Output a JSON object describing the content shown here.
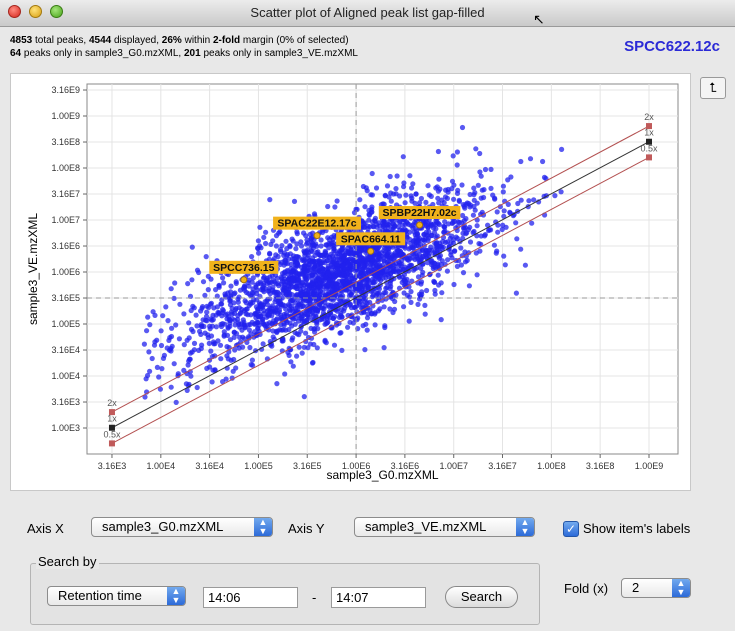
{
  "window": {
    "title": "Scatter plot of Aligned peak list gap-filled"
  },
  "summary": {
    "line1": {
      "total": "4853",
      "t1": " total peaks, ",
      "displayed": "4544",
      "t2": " displayed, ",
      "pct": "26%",
      "t3": " within ",
      "fold": "2-fold",
      "t4": " margin (0% of selected)"
    },
    "line2": {
      "only_g0": "64",
      "t1": " peaks only in sample3_G0.mzXML, ",
      "only_ve": "201",
      "t2": " peaks only in sample3_VE.mzXML"
    }
  },
  "item_name": "SPCC622.12c",
  "colors": {
    "points": "#2222ee",
    "label_bg": "#f1b21b",
    "fold_line": "#b35050",
    "diagonal": "#333333",
    "item_name": "#2b2ad6"
  },
  "controls": {
    "axis_x_label": "Axis X",
    "axis_x_value": "sample3_G0.mzXML",
    "axis_y_label": "Axis Y",
    "axis_y_value": "sample3_VE.mzXML",
    "show_labels": "Show item's labels",
    "show_labels_checked": true,
    "search_group": "Search by",
    "search_type": "Retention time",
    "search_from": "14:06",
    "search_dash": "-",
    "search_to": "14:07",
    "search_button": "Search",
    "fold_label": "Fold (x)",
    "fold_value": "2"
  },
  "icons": {
    "axes_settings": "axes-icon",
    "combo_arrow": "updown-arrows-icon",
    "checkbox": "check-icon"
  },
  "chart_data": {
    "type": "scatter",
    "xlabel": "sample3_G0.mzXML",
    "ylabel": "sample3_VE.mzXML",
    "scale": "log10",
    "xlim": [
      1000,
      1000000000
    ],
    "ylim": [
      1000,
      3160000000
    ],
    "xticks": [
      "3.16E3",
      "1.00E4",
      "3.16E4",
      "1.00E5",
      "3.16E5",
      "1.00E6",
      "3.16E6",
      "1.00E7",
      "3.16E7",
      "1.00E8",
      "3.16E8",
      "1.00E9"
    ],
    "yticks": [
      "1.00E3",
      "3.16E3",
      "1.00E4",
      "3.16E4",
      "1.00E5",
      "3.16E5",
      "1.00E6",
      "3.16E6",
      "1.00E7",
      "3.16E7",
      "1.00E8",
      "3.16E8",
      "1.00E9",
      "3.16E9"
    ],
    "grid": true,
    "crosshair": {
      "x": 1000000,
      "y": 316000
    },
    "fold_lines": [
      {
        "label": "2x",
        "factor": 2
      },
      {
        "label": "1x",
        "factor": 1
      },
      {
        "label": "0.5x",
        "factor": 0.5
      }
    ],
    "labeled_points": [
      {
        "name": "SPAC22E12.17c",
        "x": 398000,
        "y": 5000000
      },
      {
        "name": "SPBP22H7.02c",
        "x": 4470000,
        "y": 8000000
      },
      {
        "name": "SPAC664.11",
        "x": 1410000,
        "y": 2500000
      },
      {
        "name": "SPCC736.15",
        "x": 70800,
        "y": 708000
      }
    ],
    "n_points_displayed": 4544
  }
}
